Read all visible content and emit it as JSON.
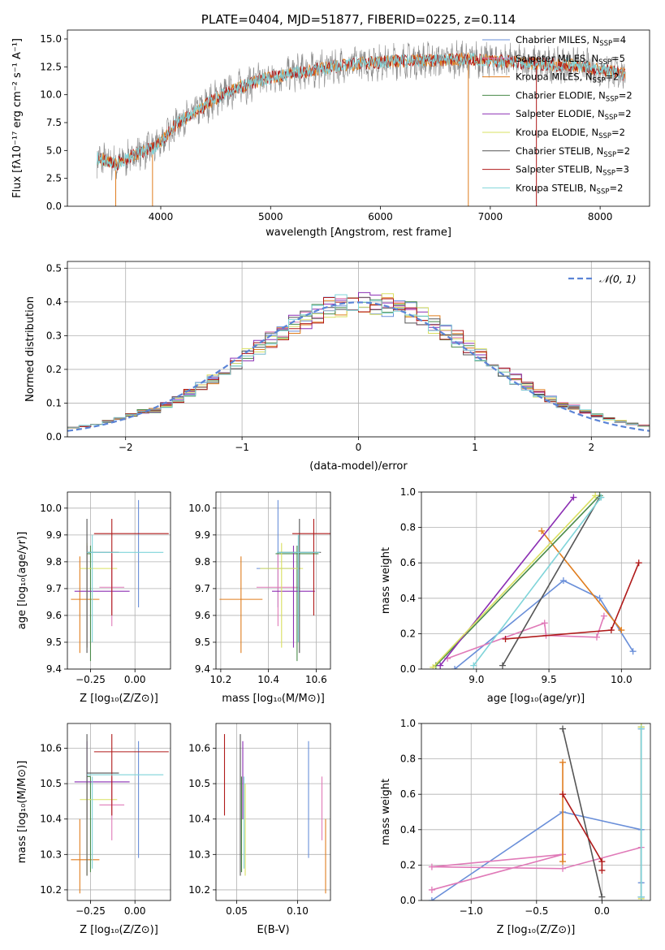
{
  "colors": {
    "chabrier_miles": "#6a8fd9",
    "salpeter_miles": "#e07ab8",
    "kroupa_miles": "#e07d1e",
    "chabrier_elodie": "#4a8a4a",
    "salpeter_elodie": "#8b2eb3",
    "kroupa_elodie": "#d9e060",
    "chabrier_stelib": "#555555",
    "salpeter_stelib": "#b01a1a",
    "kroupa_stelib": "#7fd4d9",
    "data_grey": "#888888",
    "gauss": "#5b84d6"
  },
  "chart_data": [
    {
      "id": "spectrum",
      "type": "line",
      "title": "PLATE=0404, MJD=51877, FIBERID=0225, z=0.114",
      "xlabel": "wavelength [Angstrom, rest frame]",
      "ylabel": "Flux [fλ10⁻¹⁷ erg cm⁻² s⁻¹ A⁻¹]",
      "xlim": [
        3150,
        8450
      ],
      "ylim": [
        0,
        15.8
      ],
      "xticks": [
        4000,
        5000,
        6000,
        7000,
        8000
      ],
      "yticks": [
        0.0,
        2.5,
        5.0,
        7.5,
        10.0,
        12.5,
        15.0
      ],
      "continuum": [
        [
          3420,
          4.3
        ],
        [
          3600,
          3.8
        ],
        [
          3800,
          4.8
        ],
        [
          3950,
          5.3
        ],
        [
          4000,
          5.8
        ],
        [
          4150,
          7.5
        ],
        [
          4300,
          8.3
        ],
        [
          4500,
          9.7
        ],
        [
          4700,
          10.6
        ],
        [
          4900,
          11.3
        ],
        [
          5100,
          11.7
        ],
        [
          5300,
          12.1
        ],
        [
          5500,
          12.4
        ],
        [
          5800,
          12.8
        ],
        [
          6100,
          13.0
        ],
        [
          6500,
          13.1
        ],
        [
          6800,
          13.2
        ],
        [
          7100,
          13.0
        ],
        [
          7400,
          12.8
        ],
        [
          7800,
          12.6
        ],
        [
          8100,
          12.1
        ],
        [
          8230,
          11.8
        ]
      ],
      "legend": [
        {
          "label": "Chabrier MILES, N",
          "sub": "SSP",
          "n": "=4",
          "color_key": "chabrier_miles"
        },
        {
          "label": "Salpeter MILES, N",
          "sub": "SSP",
          "n": "=5",
          "color_key": "salpeter_miles"
        },
        {
          "label": "Kroupa MILES, N",
          "sub": "SSP",
          "n": "=2",
          "color_key": "kroupa_miles"
        },
        {
          "label": "Chabrier ELODIE, N",
          "sub": "SSP",
          "n": "=2",
          "color_key": "chabrier_elodie"
        },
        {
          "label": "Salpeter ELODIE, N",
          "sub": "SSP",
          "n": "=2",
          "color_key": "salpeter_elodie"
        },
        {
          "label": "Kroupa ELODIE, N",
          "sub": "SSP",
          "n": "=2",
          "color_key": "kroupa_elodie"
        },
        {
          "label": "Chabrier STELIB, N",
          "sub": "SSP",
          "n": "=2",
          "color_key": "chabrier_stelib"
        },
        {
          "label": "Salpeter STELIB, N",
          "sub": "SSP",
          "n": "=3",
          "color_key": "salpeter_stelib"
        },
        {
          "label": "Kroupa STELIB, N",
          "sub": "SSP",
          "n": "=2",
          "color_key": "kroupa_stelib"
        }
      ]
    },
    {
      "id": "residuals",
      "type": "line",
      "xlabel": "(data-model)/error",
      "ylabel": "Normed distribution",
      "xlim": [
        -2.5,
        2.5
      ],
      "ylim": [
        0,
        0.52
      ],
      "xticks": [
        -2,
        -1,
        0,
        1,
        2
      ],
      "yticks": [
        0.0,
        0.1,
        0.2,
        0.3,
        0.4,
        0.5
      ],
      "legend": [
        {
          "label": "𝒩(0, 1)",
          "color_key": "gauss"
        }
      ],
      "bin_width": 0.1
    },
    {
      "id": "z_age",
      "type": "scatter",
      "xlabel": "Z [log₁₀(Z/Z⊙)]",
      "ylabel": "age  [log₁₀(age/yr)]",
      "xlim": [
        -0.38,
        0.2
      ],
      "ylim": [
        9.4,
        10.06
      ],
      "xticks": [
        -0.25,
        0.0
      ],
      "xtick_labels": [
        "−0.25",
        "0.00"
      ],
      "yticks": [
        9.4,
        9.5,
        9.6,
        9.7,
        9.8,
        9.9,
        10.0
      ]
    },
    {
      "id": "mass_age",
      "type": "scatter",
      "xlabel": "mass [log₁₀(M/M⊙)]",
      "xlim": [
        10.18,
        10.66
      ],
      "ylim": [
        9.4,
        10.06
      ],
      "xticks": [
        10.2,
        10.4,
        10.6
      ],
      "yticks": [
        9.4,
        9.5,
        9.6,
        9.7,
        9.8,
        9.9,
        10.0
      ]
    },
    {
      "id": "age_weight",
      "type": "line",
      "xlabel": "age  [log₁₀(age/yr)]",
      "ylabel": "mass weight",
      "xlim": [
        8.62,
        10.2
      ],
      "ylim": [
        0,
        1.0
      ],
      "xticks": [
        9.0,
        9.5,
        10.0
      ],
      "yticks": [
        0.0,
        0.2,
        0.4,
        0.6,
        0.8,
        1.0
      ]
    },
    {
      "id": "z_mass",
      "type": "scatter",
      "xlabel": "Z [log₁₀(Z/Z⊙)]",
      "ylabel": "mass [log₁₀(M/M⊙)]",
      "xlim": [
        -0.38,
        0.2
      ],
      "ylim": [
        10.17,
        10.67
      ],
      "xticks": [
        -0.25,
        0.0
      ],
      "xtick_labels": [
        "−0.25",
        "0.00"
      ],
      "yticks": [
        10.2,
        10.3,
        10.4,
        10.5,
        10.6
      ]
    },
    {
      "id": "ebv_mass",
      "type": "scatter",
      "xlabel": "E(B-V)",
      "xlim": [
        0.033,
        0.127
      ],
      "ylim": [
        10.17,
        10.67
      ],
      "xticks": [
        0.05,
        0.1
      ],
      "xtick_labels": [
        "0.05",
        "0.10"
      ],
      "yticks": [
        10.2,
        10.3,
        10.4,
        10.5,
        10.6
      ]
    },
    {
      "id": "z_weight",
      "type": "line",
      "xlabel": "Z [log₁₀(Z/Z⊙)]",
      "ylabel": "mass weight",
      "xlim": [
        -1.38,
        0.37
      ],
      "ylim": [
        0,
        1.0
      ],
      "xticks": [
        -1.0,
        -0.5,
        0.0
      ],
      "xtick_labels": [
        "−1.0",
        "−0.5",
        "0.0"
      ],
      "yticks": [
        0.0,
        0.2,
        0.4,
        0.6,
        0.8,
        1.0
      ]
    }
  ],
  "models": [
    {
      "key": "chabrier_miles",
      "Z": 0.02,
      "zl": 0.0,
      "zh": 0.0,
      "age": 9.775,
      "al": 9.63,
      "ah": 10.03,
      "mass": 10.44,
      "ml": 10.29,
      "mh": 10.62,
      "ebv": 0.109,
      "ageZ": [
        0.0,
        0.0
      ],
      "mZ": [
        -0.01,
        0.11
      ],
      "comps": [
        {
          "age": 10.08,
          "Z": 0.3,
          "w": 0.1
        },
        {
          "age": 9.85,
          "Z": 0.3,
          "w": 0.4
        },
        {
          "age": 9.6,
          "Z": -0.3,
          "w": 0.5
        },
        {
          "age": 8.85,
          "Z": -1.3,
          "w": 0.0
        }
      ]
    },
    {
      "key": "salpeter_miles",
      "Z": -0.13,
      "zl": 0.07,
      "zh": 0.07,
      "age": 9.705,
      "al": 9.56,
      "ah": 9.83,
      "mass": 10.44,
      "ml": 10.34,
      "mh": 10.52,
      "ebv": 0.12,
      "ageZ": [
        0.0,
        0.0
      ],
      "mZ": [
        -0.045,
        0.03
      ],
      "comps": [
        {
          "age": 9.88,
          "Z": 0.3,
          "w": 0.3
        },
        {
          "age": 9.83,
          "Z": -0.3,
          "w": 0.18
        },
        {
          "age": 9.48,
          "Z": -1.3,
          "w": 0.19
        },
        {
          "age": 9.47,
          "Z": -0.3,
          "w": 0.26
        },
        {
          "age": 8.8,
          "Z": -1.3,
          "w": 0.06
        }
      ]
    },
    {
      "key": "kroupa_miles",
      "Z": -0.31,
      "zl": 0.05,
      "zh": 0.11,
      "age": 9.66,
      "al": 9.46,
      "ah": 9.82,
      "mass": 10.285,
      "ml": 10.19,
      "mh": 10.4,
      "ebv": 0.123,
      "ageZ": [
        0.0,
        0.0
      ],
      "mZ": [
        -0.005,
        0.0
      ],
      "comps": [
        {
          "age": 10.0,
          "Z": -0.3,
          "w": 0.22
        },
        {
          "age": 9.45,
          "Z": -0.3,
          "w": 0.78
        }
      ]
    },
    {
      "key": "chabrier_elodie",
      "Z": -0.25,
      "zl": 0.02,
      "zh": 0.0,
      "age": 9.83,
      "al": 9.43,
      "ah": 9.86,
      "mass": 10.52,
      "ml": 10.25,
      "mh": 10.52,
      "ebv": 0.054,
      "ageZ": [
        0.0,
        0.0
      ],
      "mZ": [
        0.0,
        0.0
      ],
      "comps": [
        {
          "age": 9.85,
          "Z": 0.3,
          "w": 0.98
        },
        {
          "age": 8.72,
          "Z": 0.3,
          "w": 0.02
        }
      ]
    },
    {
      "key": "salpeter_elodie",
      "Z": -0.27,
      "zl": 0.07,
      "zh": 0.24,
      "age": 9.69,
      "al": 9.48,
      "ah": 9.86,
      "mass": 10.505,
      "ml": 10.4,
      "mh": 10.62,
      "ebv": 0.055,
      "ageZ": [
        0.0,
        0.0
      ],
      "mZ": [
        0.0,
        0.0
      ],
      "comps": [
        {
          "age": 9.67,
          "Z": 0.3,
          "w": 0.97
        },
        {
          "age": 8.75,
          "Z": 0.3,
          "w": 0.02
        }
      ]
    },
    {
      "key": "kroupa_elodie",
      "Z": -0.27,
      "zl": 0.04,
      "zh": 0.17,
      "age": 9.775,
      "al": 9.48,
      "ah": 9.87,
      "mass": 10.455,
      "ml": 10.24,
      "mh": 10.5,
      "ebv": 0.057,
      "ageZ": [
        0.0,
        0.0
      ],
      "mZ": [
        0.0,
        0.0
      ],
      "comps": [
        {
          "age": 9.82,
          "Z": 0.3,
          "w": 0.98
        },
        {
          "age": 8.7,
          "Z": 0.3,
          "w": 0.01
        }
      ]
    },
    {
      "key": "chabrier_stelib",
      "Z": -0.27,
      "zl": 0.0,
      "zh": 0.18,
      "age": 9.835,
      "al": 9.46,
      "ah": 9.96,
      "mass": 10.53,
      "ml": 10.24,
      "mh": 10.64,
      "ebv": 0.053,
      "ageZ": [
        0.0,
        0.0
      ],
      "mZ": [
        0.0,
        0.0
      ],
      "comps": [
        {
          "age": 9.85,
          "Z": -0.3,
          "w": 0.97
        },
        {
          "age": 9.18,
          "Z": 0.0,
          "w": 0.02
        }
      ]
    },
    {
      "key": "salpeter_stelib",
      "Z": -0.13,
      "zl": 0.1,
      "zh": 0.32,
      "age": 9.905,
      "al": 9.6,
      "ah": 9.96,
      "mass": 10.59,
      "ml": 10.41,
      "mh": 10.64,
      "ebv": 0.04,
      "ageZ": [
        0.0,
        0.0
      ],
      "mZ": [
        0.0,
        0.0
      ],
      "comps": [
        {
          "age": 10.12,
          "Z": -0.3,
          "w": 0.6
        },
        {
          "age": 9.93,
          "Z": 0.0,
          "w": 0.22
        },
        {
          "age": 9.2,
          "Z": 0.0,
          "w": 0.17
        }
      ]
    },
    {
      "key": "kroupa_stelib",
      "Z": -0.24,
      "zl": 0.03,
      "zh": 0.4,
      "age": 9.835,
      "al": 9.5,
      "ah": 9.9,
      "mass": 10.525,
      "ml": 10.26,
      "mh": 10.52,
      "ebv": 0.056,
      "ageZ": [
        0.0,
        0.0
      ],
      "mZ": [
        0.0,
        0.0
      ],
      "comps": [
        {
          "age": 9.86,
          "Z": 0.3,
          "w": 0.97
        },
        {
          "age": 8.98,
          "Z": 0.3,
          "w": 0.02
        }
      ]
    }
  ]
}
